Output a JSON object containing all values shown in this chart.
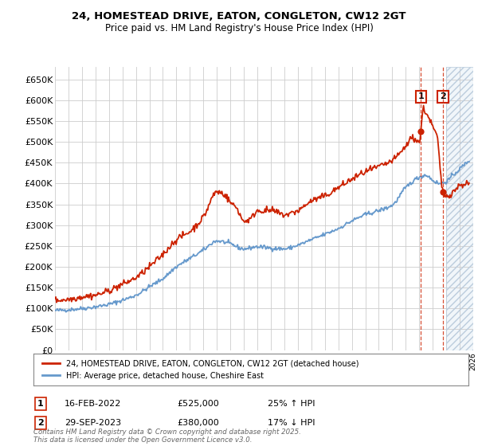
{
  "title": "24, HOMESTEAD DRIVE, EATON, CONGLETON, CW12 2GT",
  "subtitle": "Price paid vs. HM Land Registry's House Price Index (HPI)",
  "ylabel_ticks": [
    "£0",
    "£50K",
    "£100K",
    "£150K",
    "£200K",
    "£250K",
    "£300K",
    "£350K",
    "£400K",
    "£450K",
    "£500K",
    "£550K",
    "£600K",
    "£650K"
  ],
  "ytick_values": [
    0,
    50000,
    100000,
    150000,
    200000,
    250000,
    300000,
    350000,
    400000,
    450000,
    500000,
    550000,
    600000,
    650000
  ],
  "ylim": [
    0,
    680000
  ],
  "hpi_color": "#6699cc",
  "price_color": "#cc2200",
  "legend1_label": "24, HOMESTEAD DRIVE, EATON, CONGLETON, CW12 2GT (detached house)",
  "legend2_label": "HPI: Average price, detached house, Cheshire East",
  "annotation1_date": "16-FEB-2022",
  "annotation1_price": "£525,000",
  "annotation1_change": "25% ↑ HPI",
  "annotation2_date": "29-SEP-2023",
  "annotation2_price": "£380,000",
  "annotation2_change": "17% ↓ HPI",
  "footer": "Contains HM Land Registry data © Crown copyright and database right 2025.\nThis data is licensed under the Open Government Licence v3.0.",
  "background_color": "#ffffff",
  "grid_color": "#cccccc",
  "xlim_start": 1995,
  "xlim_end": 2026,
  "transaction1_x": 2022.12,
  "transaction2_x": 2023.75,
  "transaction1_y": 525000,
  "transaction2_y": 380000,
  "future_start": 2024.0
}
